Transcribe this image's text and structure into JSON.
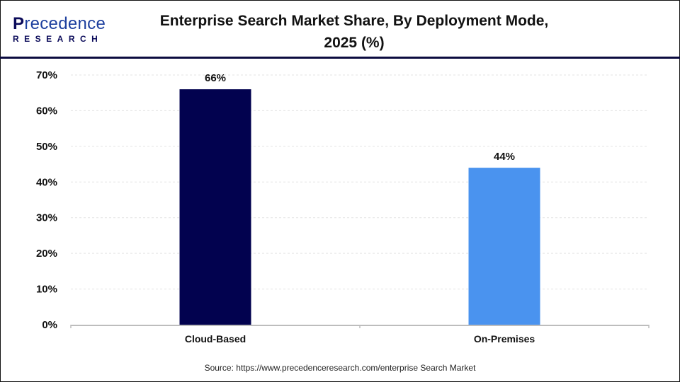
{
  "logo": {
    "main_initial": "P",
    "main_rest": "recedence",
    "sub": "RESEARCH"
  },
  "title": "Enterprise Search Market Share, By Deployment Mode, 2025 (%)",
  "source": "Source: https://www.precedenceresearch.com/enterprise Search Market",
  "chart_data": {
    "type": "bar",
    "title": "Enterprise Search Market Share, By Deployment Mode, 2025 (%)",
    "categories": [
      "Cloud-Based",
      "On-Premises"
    ],
    "values": [
      66,
      44
    ],
    "data_labels": [
      "66%",
      "44%"
    ],
    "colors": [
      "#02024f",
      "#4a93ef"
    ],
    "xlabel": "",
    "ylabel": "",
    "ylim": [
      0,
      70
    ],
    "yticks": [
      "0%",
      "10%",
      "20%",
      "30%",
      "40%",
      "50%",
      "60%",
      "70%"
    ],
    "grid": true,
    "legend": "none"
  }
}
